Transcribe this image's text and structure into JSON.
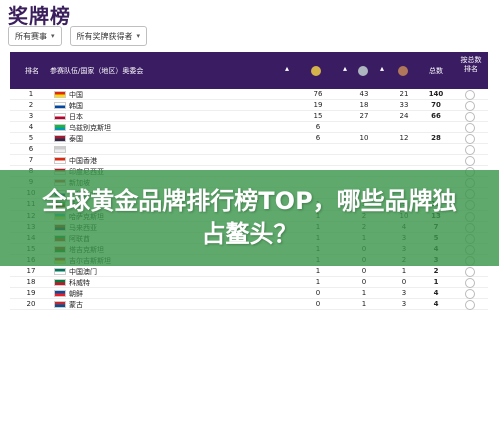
{
  "title": "奖牌榜",
  "filters": [
    {
      "label": "所有赛事"
    },
    {
      "label": "所有奖牌获得者"
    }
  ],
  "headers": {
    "rank": "排名",
    "team": "参赛队伍/国家（地区）奥委会",
    "total": "总数",
    "sort": "按总数排名"
  },
  "colors": {
    "header_bg": "#3a1c63",
    "gold": "#d4b34a",
    "silver": "#aeb7bf",
    "bronze": "#b0785a",
    "banner": "#3a964a"
  },
  "rows": [
    {
      "rank": "1",
      "name": "中国",
      "gold": "76",
      "silver": "43",
      "bronze": "21",
      "total": "140",
      "flag": [
        "#de2910",
        "#ffde00"
      ]
    },
    {
      "rank": "2",
      "name": "韩国",
      "gold": "19",
      "silver": "18",
      "bronze": "33",
      "total": "70",
      "flag": [
        "#ffffff",
        "#0047a0"
      ]
    },
    {
      "rank": "3",
      "name": "日本",
      "gold": "15",
      "silver": "27",
      "bronze": "24",
      "total": "66",
      "flag": [
        "#ffffff",
        "#bc002d"
      ]
    },
    {
      "rank": "4",
      "name": "乌兹别克斯坦",
      "gold": "6",
      "silver": "",
      "bronze": "",
      "total": "",
      "flag": [
        "#1eb53a",
        "#0099b5"
      ]
    },
    {
      "rank": "5",
      "name": "泰国",
      "gold": "6",
      "silver": "10",
      "bronze": "12",
      "total": "28",
      "flag": [
        "#a51931",
        "#2d2a4a"
      ]
    },
    {
      "rank": "6",
      "name": "",
      "gold": "",
      "silver": "",
      "bronze": "",
      "total": "",
      "flag": [
        "#cccccc",
        "#eeeeee"
      ]
    },
    {
      "rank": "7",
      "name": "中国香港",
      "gold": "",
      "silver": "",
      "bronze": "",
      "total": "",
      "flag": [
        "#de2910",
        "#ffffff"
      ]
    },
    {
      "rank": "8",
      "name": "印度尼西亚",
      "gold": "",
      "silver": "",
      "bronze": "",
      "total": "",
      "flag": [
        "#ce1126",
        "#ffffff"
      ]
    },
    {
      "rank": "9",
      "name": "新加坡",
      "gold": "",
      "silver": "",
      "bronze": "",
      "total": "",
      "flag": [
        "#ef3340",
        "#ffffff"
      ]
    },
    {
      "rank": "10",
      "name": "中华台北",
      "gold": "",
      "silver": "",
      "bronze": "",
      "total": "",
      "flag": [
        "#ffffff",
        "#003399"
      ]
    },
    {
      "rank": "11",
      "name": "伊朗",
      "gold": "1",
      "silver": "5",
      "bronze": "9",
      "total": "15",
      "flag": [
        "#239f40",
        "#da0000"
      ]
    },
    {
      "rank": "12",
      "name": "哈萨克斯坦",
      "gold": "1",
      "silver": "2",
      "bronze": "10",
      "total": "13",
      "flag": [
        "#00afca",
        "#fec50c"
      ]
    },
    {
      "rank": "13",
      "name": "马来西亚",
      "gold": "1",
      "silver": "2",
      "bronze": "4",
      "total": "7",
      "flag": [
        "#cc0001",
        "#010066"
      ]
    },
    {
      "rank": "14",
      "name": "阿联酋",
      "gold": "1",
      "silver": "1",
      "bronze": "3",
      "total": "5",
      "flag": [
        "#00732f",
        "#ff0000"
      ]
    },
    {
      "rank": "15",
      "name": "塔吉克斯坦",
      "gold": "1",
      "silver": "0",
      "bronze": "3",
      "total": "4",
      "flag": [
        "#cc0000",
        "#006600"
      ]
    },
    {
      "rank": "16",
      "name": "吉尔吉斯斯坦",
      "gold": "1",
      "silver": "0",
      "bronze": "2",
      "total": "3",
      "flag": [
        "#e8112d",
        "#ffef00"
      ]
    },
    {
      "rank": "17",
      "name": "中国澳门",
      "gold": "1",
      "silver": "0",
      "bronze": "1",
      "total": "2",
      "flag": [
        "#00785e",
        "#ffffff"
      ]
    },
    {
      "rank": "18",
      "name": "科威特",
      "gold": "1",
      "silver": "0",
      "bronze": "0",
      "total": "1",
      "flag": [
        "#007a3d",
        "#ce1126"
      ]
    },
    {
      "rank": "19",
      "name": "朝鲜",
      "gold": "0",
      "silver": "1",
      "bronze": "3",
      "total": "4",
      "flag": [
        "#024fa2",
        "#ed1c27"
      ]
    },
    {
      "rank": "20",
      "name": "蒙古",
      "gold": "0",
      "silver": "1",
      "bronze": "3",
      "total": "4",
      "flag": [
        "#c4272f",
        "#015197"
      ]
    }
  ],
  "banner": {
    "text": "全球黄金品牌排行榜TOP，哪些品牌独占鳌头？"
  }
}
